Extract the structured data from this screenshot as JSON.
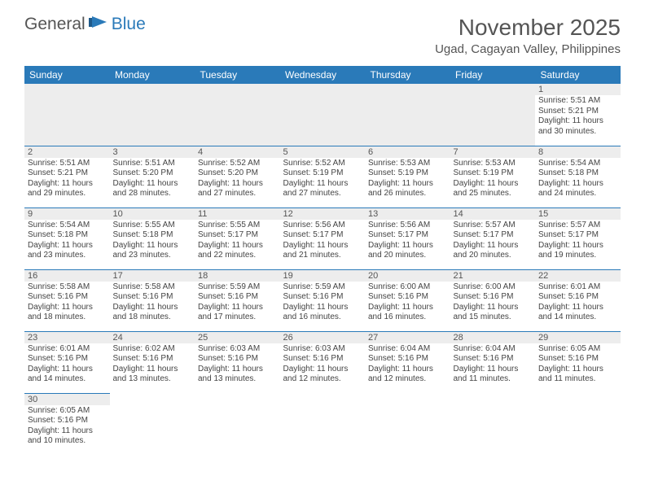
{
  "logo": {
    "general": "General",
    "blue": "Blue"
  },
  "title": "November 2025",
  "location": "Ugad, Cagayan Valley, Philippines",
  "colors": {
    "header_bg": "#2a7ab9",
    "header_text": "#ffffff",
    "daynum_bg": "#ededed",
    "grid_border": "#2a7ab9",
    "body_text": "#444444",
    "title_text": "#555555"
  },
  "weekdays": [
    "Sunday",
    "Monday",
    "Tuesday",
    "Wednesday",
    "Thursday",
    "Friday",
    "Saturday"
  ],
  "weeks": [
    [
      null,
      null,
      null,
      null,
      null,
      null,
      {
        "n": "1",
        "sunrise": "Sunrise: 5:51 AM",
        "sunset": "Sunset: 5:21 PM",
        "daylight1": "Daylight: 11 hours",
        "daylight2": "and 30 minutes."
      }
    ],
    [
      {
        "n": "2",
        "sunrise": "Sunrise: 5:51 AM",
        "sunset": "Sunset: 5:21 PM",
        "daylight1": "Daylight: 11 hours",
        "daylight2": "and 29 minutes."
      },
      {
        "n": "3",
        "sunrise": "Sunrise: 5:51 AM",
        "sunset": "Sunset: 5:20 PM",
        "daylight1": "Daylight: 11 hours",
        "daylight2": "and 28 minutes."
      },
      {
        "n": "4",
        "sunrise": "Sunrise: 5:52 AM",
        "sunset": "Sunset: 5:20 PM",
        "daylight1": "Daylight: 11 hours",
        "daylight2": "and 27 minutes."
      },
      {
        "n": "5",
        "sunrise": "Sunrise: 5:52 AM",
        "sunset": "Sunset: 5:19 PM",
        "daylight1": "Daylight: 11 hours",
        "daylight2": "and 27 minutes."
      },
      {
        "n": "6",
        "sunrise": "Sunrise: 5:53 AM",
        "sunset": "Sunset: 5:19 PM",
        "daylight1": "Daylight: 11 hours",
        "daylight2": "and 26 minutes."
      },
      {
        "n": "7",
        "sunrise": "Sunrise: 5:53 AM",
        "sunset": "Sunset: 5:19 PM",
        "daylight1": "Daylight: 11 hours",
        "daylight2": "and 25 minutes."
      },
      {
        "n": "8",
        "sunrise": "Sunrise: 5:54 AM",
        "sunset": "Sunset: 5:18 PM",
        "daylight1": "Daylight: 11 hours",
        "daylight2": "and 24 minutes."
      }
    ],
    [
      {
        "n": "9",
        "sunrise": "Sunrise: 5:54 AM",
        "sunset": "Sunset: 5:18 PM",
        "daylight1": "Daylight: 11 hours",
        "daylight2": "and 23 minutes."
      },
      {
        "n": "10",
        "sunrise": "Sunrise: 5:55 AM",
        "sunset": "Sunset: 5:18 PM",
        "daylight1": "Daylight: 11 hours",
        "daylight2": "and 23 minutes."
      },
      {
        "n": "11",
        "sunrise": "Sunrise: 5:55 AM",
        "sunset": "Sunset: 5:17 PM",
        "daylight1": "Daylight: 11 hours",
        "daylight2": "and 22 minutes."
      },
      {
        "n": "12",
        "sunrise": "Sunrise: 5:56 AM",
        "sunset": "Sunset: 5:17 PM",
        "daylight1": "Daylight: 11 hours",
        "daylight2": "and 21 minutes."
      },
      {
        "n": "13",
        "sunrise": "Sunrise: 5:56 AM",
        "sunset": "Sunset: 5:17 PM",
        "daylight1": "Daylight: 11 hours",
        "daylight2": "and 20 minutes."
      },
      {
        "n": "14",
        "sunrise": "Sunrise: 5:57 AM",
        "sunset": "Sunset: 5:17 PM",
        "daylight1": "Daylight: 11 hours",
        "daylight2": "and 20 minutes."
      },
      {
        "n": "15",
        "sunrise": "Sunrise: 5:57 AM",
        "sunset": "Sunset: 5:17 PM",
        "daylight1": "Daylight: 11 hours",
        "daylight2": "and 19 minutes."
      }
    ],
    [
      {
        "n": "16",
        "sunrise": "Sunrise: 5:58 AM",
        "sunset": "Sunset: 5:16 PM",
        "daylight1": "Daylight: 11 hours",
        "daylight2": "and 18 minutes."
      },
      {
        "n": "17",
        "sunrise": "Sunrise: 5:58 AM",
        "sunset": "Sunset: 5:16 PM",
        "daylight1": "Daylight: 11 hours",
        "daylight2": "and 18 minutes."
      },
      {
        "n": "18",
        "sunrise": "Sunrise: 5:59 AM",
        "sunset": "Sunset: 5:16 PM",
        "daylight1": "Daylight: 11 hours",
        "daylight2": "and 17 minutes."
      },
      {
        "n": "19",
        "sunrise": "Sunrise: 5:59 AM",
        "sunset": "Sunset: 5:16 PM",
        "daylight1": "Daylight: 11 hours",
        "daylight2": "and 16 minutes."
      },
      {
        "n": "20",
        "sunrise": "Sunrise: 6:00 AM",
        "sunset": "Sunset: 5:16 PM",
        "daylight1": "Daylight: 11 hours",
        "daylight2": "and 16 minutes."
      },
      {
        "n": "21",
        "sunrise": "Sunrise: 6:00 AM",
        "sunset": "Sunset: 5:16 PM",
        "daylight1": "Daylight: 11 hours",
        "daylight2": "and 15 minutes."
      },
      {
        "n": "22",
        "sunrise": "Sunrise: 6:01 AM",
        "sunset": "Sunset: 5:16 PM",
        "daylight1": "Daylight: 11 hours",
        "daylight2": "and 14 minutes."
      }
    ],
    [
      {
        "n": "23",
        "sunrise": "Sunrise: 6:01 AM",
        "sunset": "Sunset: 5:16 PM",
        "daylight1": "Daylight: 11 hours",
        "daylight2": "and 14 minutes."
      },
      {
        "n": "24",
        "sunrise": "Sunrise: 6:02 AM",
        "sunset": "Sunset: 5:16 PM",
        "daylight1": "Daylight: 11 hours",
        "daylight2": "and 13 minutes."
      },
      {
        "n": "25",
        "sunrise": "Sunrise: 6:03 AM",
        "sunset": "Sunset: 5:16 PM",
        "daylight1": "Daylight: 11 hours",
        "daylight2": "and 13 minutes."
      },
      {
        "n": "26",
        "sunrise": "Sunrise: 6:03 AM",
        "sunset": "Sunset: 5:16 PM",
        "daylight1": "Daylight: 11 hours",
        "daylight2": "and 12 minutes."
      },
      {
        "n": "27",
        "sunrise": "Sunrise: 6:04 AM",
        "sunset": "Sunset: 5:16 PM",
        "daylight1": "Daylight: 11 hours",
        "daylight2": "and 12 minutes."
      },
      {
        "n": "28",
        "sunrise": "Sunrise: 6:04 AM",
        "sunset": "Sunset: 5:16 PM",
        "daylight1": "Daylight: 11 hours",
        "daylight2": "and 11 minutes."
      },
      {
        "n": "29",
        "sunrise": "Sunrise: 6:05 AM",
        "sunset": "Sunset: 5:16 PM",
        "daylight1": "Daylight: 11 hours",
        "daylight2": "and 11 minutes."
      }
    ],
    [
      {
        "n": "30",
        "sunrise": "Sunrise: 6:05 AM",
        "sunset": "Sunset: 5:16 PM",
        "daylight1": "Daylight: 11 hours",
        "daylight2": "and 10 minutes."
      },
      null,
      null,
      null,
      null,
      null,
      null
    ]
  ]
}
